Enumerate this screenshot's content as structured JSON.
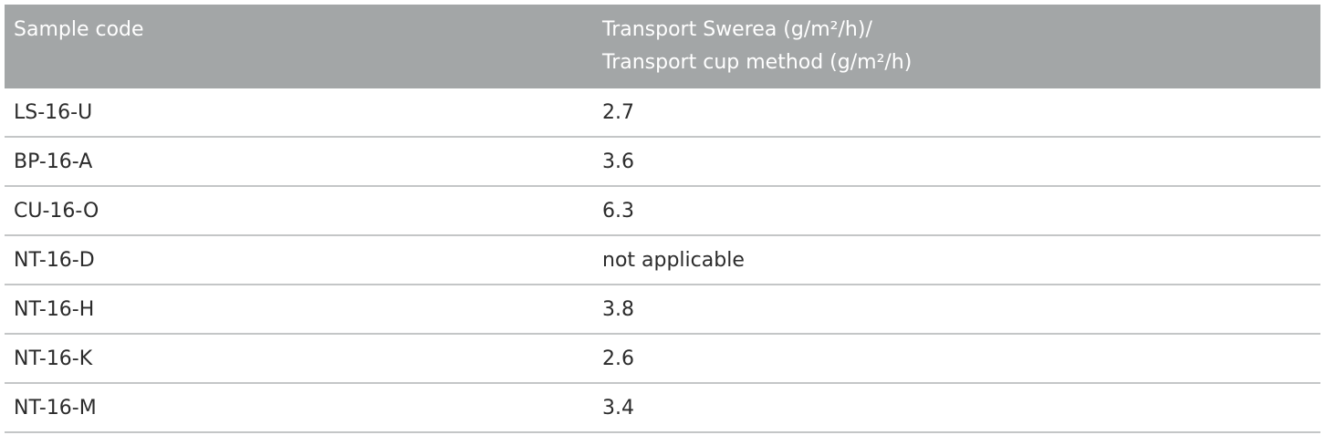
{
  "table": {
    "header": {
      "col1": "Sample code",
      "col2_line1": "Transport Swerea (g/m²/h)/",
      "col2_line2": "Transport cup method (g/m²/h)"
    },
    "rows": [
      {
        "code": "LS-16-U",
        "value": "2.7"
      },
      {
        "code": "BP-16-A",
        "value": "3.6"
      },
      {
        "code": "CU-16-O",
        "value": "6.3"
      },
      {
        "code": "NT-16-D",
        "value": "not applicable"
      },
      {
        "code": "NT-16-H",
        "value": "3.8"
      },
      {
        "code": "NT-16-K",
        "value": "2.6"
      },
      {
        "code": "NT-16-M",
        "value": "3.4"
      }
    ]
  },
  "colors": {
    "header_bg": "#a3a6a7",
    "header_text": "#ffffff",
    "row_divider": "#c4c6c7",
    "body_text": "#2b2b2b"
  }
}
